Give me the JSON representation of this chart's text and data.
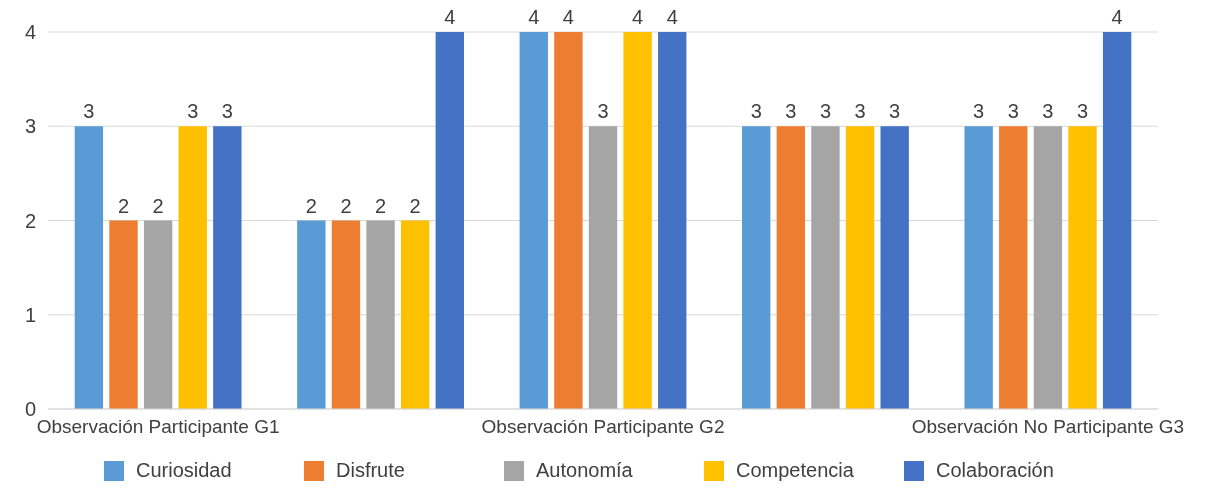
{
  "chart_data": {
    "type": "bar",
    "categories": [
      "Observación Participante G1",
      null,
      "Observación Participante G2",
      null,
      "Observación No Participante G3"
    ],
    "series": [
      {
        "name": "Curiosidad",
        "color": "#5b9bd5",
        "values": [
          3,
          2,
          4,
          3,
          3
        ]
      },
      {
        "name": "Disfrute",
        "color": "#ed7d31",
        "values": [
          2,
          2,
          4,
          3,
          3
        ]
      },
      {
        "name": "Autonomía",
        "color": "#a5a5a5",
        "values": [
          2,
          2,
          3,
          3,
          3
        ]
      },
      {
        "name": "Competencia",
        "color": "#ffc000",
        "values": [
          3,
          2,
          4,
          3,
          3
        ]
      },
      {
        "name": "Colaboración",
        "color": "#4472c4",
        "values": [
          3,
          4,
          4,
          3,
          4
        ]
      }
    ],
    "ylim": [
      0,
      4
    ],
    "yticks": [
      0,
      1,
      2,
      3,
      4
    ],
    "grid": "y",
    "data_labels": true,
    "legend": "bottom"
  }
}
